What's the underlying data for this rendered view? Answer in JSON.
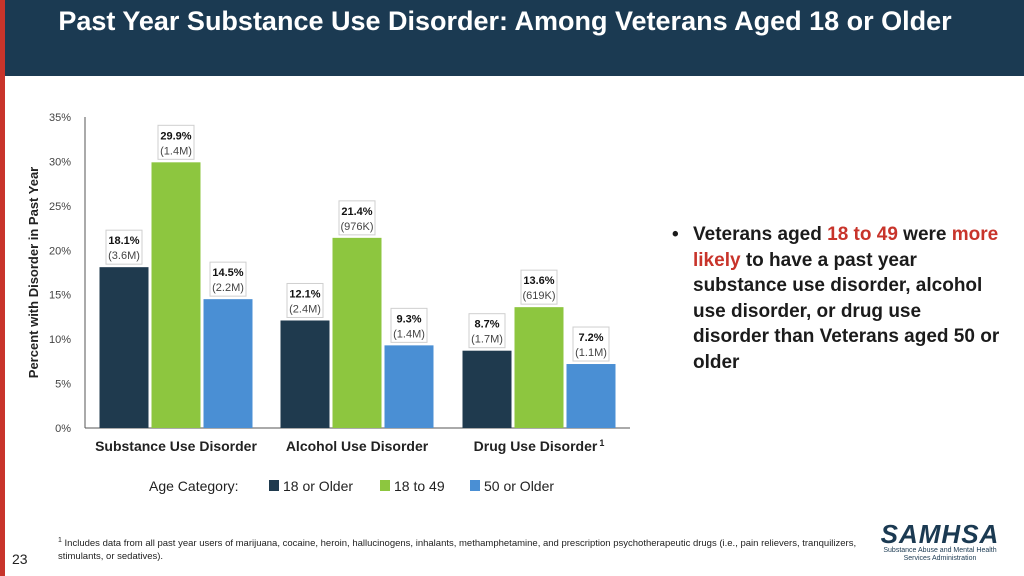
{
  "title": "Past Year Substance Use Disorder: Among Veterans Aged 18 or Older",
  "colors": {
    "title_bg": "#1b3a52",
    "accent_red": "#c8342b",
    "series_18_older": "#1f3a4e",
    "series_18_49": "#8dc63f",
    "series_50_older": "#4a8fd4"
  },
  "chart_data": {
    "type": "bar",
    "title": "",
    "ylabel": "Percent with Disorder in Past Year",
    "xlabel": "",
    "ylim": [
      0,
      35
    ],
    "yticks": [
      "0%",
      "5%",
      "10%",
      "15%",
      "20%",
      "25%",
      "30%",
      "35%"
    ],
    "categories": [
      "Substance Use Disorder",
      "Alcohol Use Disorder",
      "Drug Use Disorder"
    ],
    "category_superscripts": [
      "",
      "",
      "1"
    ],
    "legend_title": "Age Category:",
    "series": [
      {
        "name": "18 or Older",
        "values": [
          18.1,
          12.1,
          8.7
        ],
        "labels": [
          "18.1%",
          "12.1%",
          "8.7%"
        ],
        "counts": [
          "(3.6M)",
          "(2.4M)",
          "(1.7M)"
        ]
      },
      {
        "name": "18 to 49",
        "values": [
          29.9,
          21.4,
          13.6
        ],
        "labels": [
          "29.9%",
          "21.4%",
          "13.6%"
        ],
        "counts": [
          "(1.4M)",
          "(976K)",
          "(619K)"
        ]
      },
      {
        "name": "50 or Older",
        "values": [
          14.5,
          9.3,
          7.2
        ],
        "labels": [
          "14.5%",
          "9.3%",
          "7.2%"
        ],
        "counts": [
          "(2.2M)",
          "(1.4M)",
          "(1.1M)"
        ]
      }
    ]
  },
  "bullet": {
    "part1": "Veterans aged ",
    "highlight1": "18 to 49",
    "part2": " were ",
    "highlight2": "more likely",
    "part3": " to have a past year substance use disorder, alcohol use disorder, or drug use disorder than Veterans aged 50 or older"
  },
  "footnote": {
    "marker": "1",
    "text": " Includes data from all past year users of marijuana, cocaine, heroin, hallucinogens, inhalants, methamphetamine, and prescription psychotherapeutic drugs (i.e., pain relievers, tranquilizers, stimulants, or sedatives)."
  },
  "page_number": "23",
  "logo": {
    "word": "SAMHSA",
    "subtitle": "Substance Abuse and Mental Health Services Administration"
  }
}
